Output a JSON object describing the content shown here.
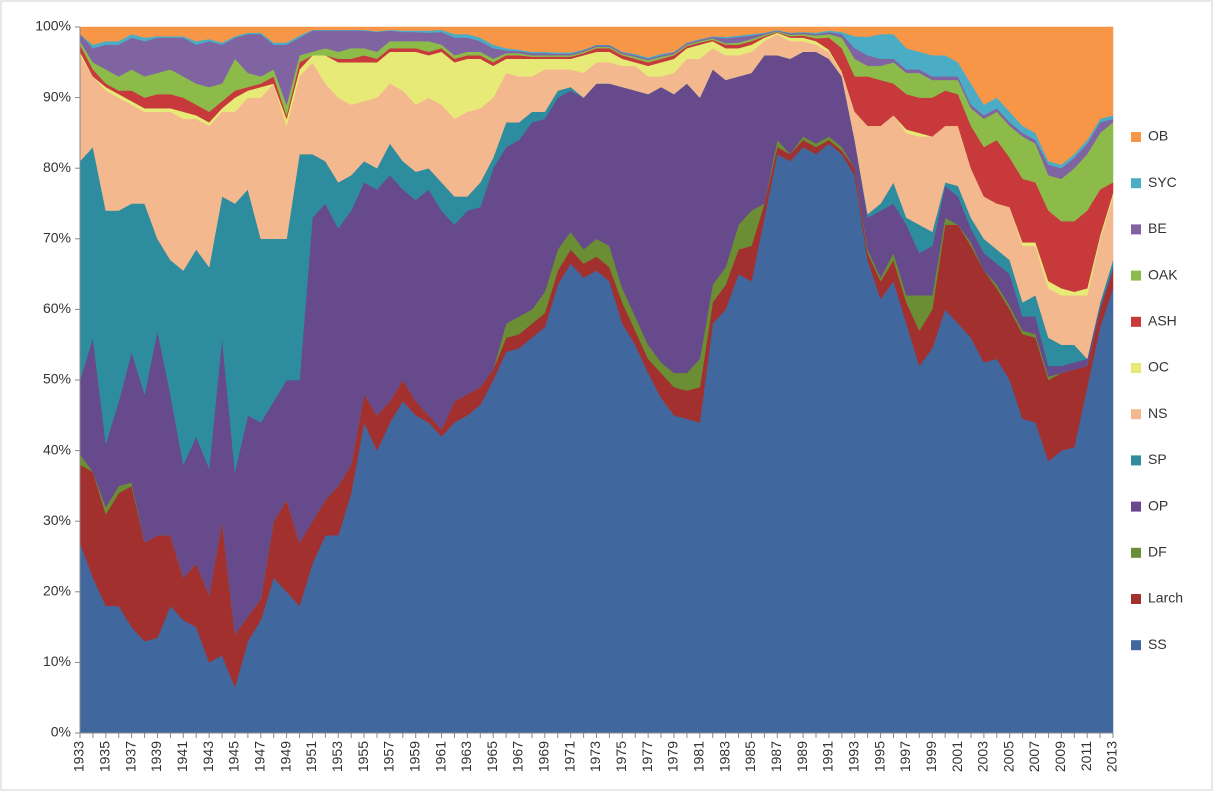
{
  "chart_data": {
    "type": "stacked_area_percent",
    "categories": [
      "1933",
      null,
      "1935",
      null,
      "1937",
      null,
      "1939",
      null,
      "1941",
      null,
      "1943",
      null,
      "1945",
      null,
      "1947",
      null,
      "1949",
      null,
      "1951",
      null,
      "1953",
      null,
      "1955",
      null,
      "1957",
      null,
      "1959",
      null,
      "1961",
      null,
      "1963",
      null,
      "1965",
      null,
      "1967",
      null,
      "1969",
      null,
      "1971",
      null,
      "1973",
      null,
      "1975",
      null,
      "1977",
      null,
      "1979",
      null,
      "1981",
      null,
      "1983",
      null,
      "1985",
      null,
      "1987",
      null,
      "1989",
      null,
      "1991",
      null,
      "1993",
      null,
      "1995",
      null,
      "1997",
      null,
      "1999",
      null,
      "2001",
      null,
      "2003",
      null,
      "2005",
      null,
      "2007",
      null,
      "2009",
      null,
      "2011",
      null,
      "2013"
    ],
    "ylim": [
      0,
      100
    ],
    "yticks": [
      {
        "value": 0,
        "label": "0%"
      },
      {
        "value": 10,
        "label": "10%"
      },
      {
        "value": 20,
        "label": "20%"
      },
      {
        "value": 30,
        "label": "30%"
      },
      {
        "value": 40,
        "label": "40%"
      },
      {
        "value": 50,
        "label": "50%"
      },
      {
        "value": 60,
        "label": "60%"
      },
      {
        "value": 70,
        "label": "70%"
      },
      {
        "value": 80,
        "label": "80%"
      },
      {
        "value": 90,
        "label": "90%"
      },
      {
        "value": 100,
        "label": "100%"
      }
    ],
    "legend": "right",
    "series": [
      {
        "name": "SS",
        "color": "#41689e",
        "values": [
          27,
          22,
          18,
          18,
          15,
          13,
          13.5,
          18,
          16,
          15,
          10,
          11,
          6.5,
          13,
          16,
          22,
          20,
          18,
          24,
          28,
          28,
          34,
          44,
          40,
          44,
          47,
          45,
          44,
          42,
          44,
          45,
          46.5,
          50,
          54,
          54.5,
          56,
          57.5,
          63.5,
          66.5,
          64.5,
          65.5,
          64,
          58,
          55,
          51,
          47.5,
          45,
          44.5,
          44,
          58,
          60,
          65,
          64,
          73,
          82,
          81,
          83,
          82,
          83.5,
          82,
          79,
          67,
          61.5,
          64,
          58,
          52,
          54.5,
          60,
          58,
          56,
          52.5,
          53,
          50,
          44.5,
          44,
          38.5,
          40,
          40.5,
          49,
          57.5,
          63
        ]
      },
      {
        "name": "Larch",
        "color": "#a2302e",
        "values": [
          11,
          15,
          13,
          16,
          20,
          14,
          14.5,
          10,
          6,
          9,
          9.5,
          19,
          7.5,
          3.5,
          3,
          8,
          13,
          9,
          6,
          5,
          7,
          4,
          4,
          5,
          3,
          3,
          2,
          1,
          1,
          3,
          3,
          2.5,
          1.5,
          2,
          2,
          2,
          2,
          2,
          2,
          2,
          2,
          2,
          3,
          2,
          2,
          3.5,
          4,
          4,
          5,
          3,
          3.5,
          3.5,
          5,
          2,
          1,
          1,
          1,
          1,
          0.5,
          0.5,
          1,
          1,
          2.5,
          3,
          3,
          5,
          5.5,
          12,
          14,
          13,
          13,
          10,
          10,
          12,
          12,
          11.5,
          11,
          11,
          3,
          2.5,
          2.5
        ]
      },
      {
        "name": "DF",
        "color": "#6b8e34",
        "values": [
          1.5,
          0,
          1,
          1,
          0.5,
          0,
          0,
          0,
          0,
          0,
          0,
          0,
          0,
          0,
          0,
          0,
          0,
          0,
          0,
          0,
          0,
          0,
          0,
          0,
          0,
          0,
          0,
          0,
          0,
          0,
          0,
          0,
          0,
          2,
          2.5,
          2,
          3,
          3,
          2.5,
          2,
          2.5,
          3,
          2,
          2,
          2,
          1.5,
          2,
          2.5,
          4,
          2.5,
          2.5,
          3.5,
          5,
          0,
          1,
          0,
          0.5,
          0.5,
          0.5,
          0.5,
          0,
          0.5,
          0.5,
          1,
          1,
          5,
          2,
          1,
          0,
          0.5,
          0,
          0.5,
          0.5,
          0.5,
          0.5,
          0.5,
          0,
          0,
          0,
          0,
          0
        ]
      },
      {
        "name": "OP",
        "color": "#664a8c",
        "values": [
          10.5,
          19,
          9,
          12,
          18.5,
          21,
          29,
          20,
          16,
          18,
          18,
          26,
          23,
          28.5,
          25,
          17,
          17,
          23,
          43,
          42,
          36.5,
          36,
          30,
          32,
          32,
          27,
          28.5,
          32,
          31,
          25,
          26,
          25.5,
          28.5,
          25,
          25,
          26.5,
          24.5,
          21.5,
          20,
          21.5,
          22,
          23,
          28.5,
          32,
          35.5,
          39,
          39.5,
          41,
          37,
          30.5,
          26.5,
          21,
          19.5,
          21,
          12,
          13.5,
          12,
          13,
          11,
          10,
          4,
          4.5,
          9.5,
          7,
          10,
          6,
          7,
          4.5,
          4,
          2,
          2.5,
          3,
          4.5,
          2,
          2.5,
          1.5,
          1,
          1,
          1,
          0.5,
          0.5
        ]
      },
      {
        "name": "SP",
        "color": "#2e8c9f",
        "values": [
          31,
          27,
          33,
          27,
          21,
          27,
          13,
          19,
          27.5,
          26.5,
          28.5,
          20,
          38,
          32,
          26,
          23,
          20,
          32,
          9,
          6,
          6.5,
          5,
          3,
          3,
          4.5,
          4,
          4,
          3,
          4,
          4,
          2,
          3.5,
          1.5,
          3.5,
          2.5,
          1.5,
          1,
          1,
          0.5,
          0,
          0,
          0,
          0,
          0,
          0,
          0,
          0,
          0,
          0,
          0,
          0,
          0,
          0,
          0,
          0,
          0,
          0,
          0,
          0,
          0,
          0,
          0.5,
          1,
          3,
          1,
          4,
          2,
          0.5,
          1.5,
          1.5,
          2,
          2,
          2,
          2,
          3,
          4,
          3,
          2.5,
          0,
          0.5,
          1
        ]
      },
      {
        "name": "NS",
        "color": "#f4b88f",
        "values": [
          15,
          10,
          17,
          16,
          14,
          13,
          18,
          21,
          21.5,
          18.5,
          20,
          12,
          13,
          13,
          20,
          22,
          16,
          11,
          13,
          11,
          12,
          10,
          8.5,
          10,
          8.5,
          10,
          9.5,
          10,
          11,
          11,
          12,
          10.5,
          8.5,
          7,
          6.5,
          5,
          6,
          3,
          2.5,
          3.5,
          3,
          3,
          3,
          3.5,
          2.5,
          1.5,
          3,
          3.5,
          5.5,
          3,
          3.5,
          3,
          3,
          2,
          3,
          2.5,
          1.5,
          1,
          1,
          0.5,
          4,
          12.5,
          11,
          9.5,
          12,
          12.5,
          13.5,
          8,
          8.5,
          7,
          6,
          6.5,
          7.5,
          8,
          7,
          7,
          7,
          7,
          9,
          9,
          9
        ]
      },
      {
        "name": "OC",
        "color": "#e8ea78",
        "values": [
          0.5,
          0,
          0.5,
          0.5,
          0.5,
          0.5,
          0.5,
          0.5,
          1,
          0.5,
          0.5,
          0.5,
          2,
          1,
          1.5,
          0,
          1,
          1,
          1,
          4,
          5,
          6,
          5.5,
          5,
          4.5,
          5.5,
          7.5,
          6,
          7.5,
          8,
          7.5,
          7,
          4.5,
          2,
          2.5,
          2.5,
          1.5,
          1.5,
          1.5,
          2.5,
          1.5,
          1.5,
          1,
          0.5,
          1.5,
          2,
          2,
          1.5,
          2,
          1,
          1,
          1,
          1,
          0.5,
          0.2,
          0.5,
          0.5,
          0.5,
          0.3,
          0.2,
          0,
          0,
          0,
          0,
          0.5,
          0.5,
          0,
          0,
          0,
          0,
          0,
          0,
          0,
          0.5,
          0.5,
          1,
          1,
          0.5,
          1,
          0.5,
          0.5
        ]
      },
      {
        "name": "ASH",
        "color": "#c7393a",
        "values": [
          1,
          1,
          0.5,
          0.5,
          1.5,
          1.5,
          2,
          2,
          2,
          1.5,
          1.5,
          1,
          1,
          0.5,
          0.5,
          1,
          0.5,
          1,
          0,
          0,
          0.5,
          0.5,
          1,
          0.5,
          0.5,
          0.5,
          0.5,
          0.5,
          0.5,
          0.5,
          0.5,
          0.5,
          0.5,
          0.5,
          0.5,
          0.3,
          0.3,
          0.3,
          0.3,
          0.3,
          0.5,
          0.5,
          0.5,
          0.5,
          0.5,
          0.5,
          0.5,
          0.3,
          0.3,
          0.2,
          0.5,
          0.5,
          0.5,
          0.2,
          0.1,
          0.2,
          0.3,
          0.4,
          1.7,
          3.3,
          5,
          7,
          6.5,
          4.5,
          5,
          5,
          5.5,
          5,
          4.5,
          6,
          7,
          9,
          7,
          9,
          8.5,
          10,
          9.5,
          10,
          11,
          6.5,
          1.5
        ]
      },
      {
        "name": "OAK",
        "color": "#8dbb4a",
        "values": [
          0.5,
          1,
          2,
          2,
          3,
          3,
          3,
          3.5,
          3,
          3,
          3.5,
          2.5,
          4.5,
          2,
          1,
          1,
          1.5,
          1,
          0.5,
          1,
          1,
          1.5,
          1,
          1,
          1,
          1,
          1,
          1.5,
          0.5,
          0.5,
          0.5,
          0.5,
          0.5,
          0.3,
          0.3,
          0.2,
          0.2,
          0.2,
          0.2,
          0.2,
          0.2,
          0.2,
          0.2,
          0.3,
          0.3,
          0.3,
          0.2,
          0.2,
          0.2,
          0.2,
          0.2,
          0.3,
          0.3,
          0.2,
          0.1,
          0.2,
          0.2,
          0.4,
          0.5,
          1.5,
          2.5,
          1.5,
          2,
          3,
          3,
          3.5,
          2.5,
          1.5,
          2,
          2.5,
          4,
          4,
          4.5,
          6,
          5.5,
          5,
          6,
          7.5,
          8,
          8,
          8.5
        ]
      },
      {
        "name": "BE",
        "color": "#8064a2",
        "values": [
          1,
          2,
          3.5,
          4.5,
          4.5,
          5,
          5,
          4.5,
          5.5,
          5.5,
          6.5,
          5.5,
          3,
          5.5,
          6,
          3.5,
          8.5,
          2.5,
          3,
          2.5,
          3,
          2.5,
          2.5,
          2.8,
          1.5,
          1.3,
          1.3,
          1.2,
          1.8,
          2.5,
          2,
          1.5,
          1.5,
          0.4,
          0.3,
          0.3,
          0.3,
          0.2,
          0.2,
          0.2,
          0.2,
          0.2,
          0.2,
          0.2,
          0.2,
          0.2,
          0.2,
          0.2,
          0.2,
          0.2,
          0.7,
          0.8,
          0.5,
          0.2,
          0.1,
          0.2,
          0.2,
          0.2,
          0.3,
          0.5,
          1.5,
          1.5,
          1,
          0.5,
          0.5,
          0.5,
          0.5,
          0.5,
          0.5,
          0.5,
          0.5,
          0.5,
          0.5,
          0.5,
          0.5,
          1.5,
          1.5,
          1.5,
          1.5,
          1.5,
          0.5
        ]
      },
      {
        "name": "SYC",
        "color": "#4bacc6",
        "values": [
          0,
          0.5,
          0.5,
          0.5,
          0.5,
          0.5,
          0.2,
          0.2,
          0.2,
          0.5,
          0.3,
          0.3,
          0.2,
          0.2,
          0.2,
          0.3,
          0.3,
          0.3,
          0.1,
          0.1,
          0.1,
          0.1,
          0.1,
          0.1,
          0.1,
          0.2,
          0.2,
          0.3,
          0.3,
          0.5,
          0.5,
          0.5,
          0.5,
          0.3,
          0.2,
          0.2,
          0.2,
          0.2,
          0.2,
          0.1,
          0.1,
          0.1,
          0.1,
          0.2,
          0.2,
          0.2,
          0.1,
          0.1,
          0.1,
          0.1,
          0.2,
          0.2,
          0.2,
          0.1,
          0.1,
          0.1,
          0.1,
          0.2,
          0.2,
          0.3,
          1.7,
          2.6,
          3.5,
          3.5,
          3,
          2.5,
          3,
          3,
          2,
          3,
          1.5,
          1.5,
          1.5,
          1,
          1,
          0.5,
          0.5,
          0.5,
          0.5,
          0.5,
          0.5
        ]
      },
      {
        "name": "OB",
        "color": "#f79646",
        "values": [
          1,
          2.5,
          2,
          2,
          1,
          1.5,
          1.3,
          1.3,
          1.3,
          2,
          1.7,
          2.2,
          1.3,
          0.8,
          0.8,
          2.2,
          2.2,
          1.2,
          0.4,
          0.4,
          0.4,
          0.4,
          0.4,
          0.6,
          0.4,
          0.5,
          0.5,
          0.5,
          0.4,
          1,
          1,
          1.5,
          2.5,
          3,
          3.2,
          3.5,
          3.5,
          3.6,
          3.6,
          3.2,
          2.5,
          2.5,
          3.5,
          3.8,
          4.3,
          3.8,
          3.5,
          2.2,
          1.7,
          1.3,
          1.4,
          1.2,
          1,
          0.8,
          0.4,
          0.8,
          0.7,
          0.8,
          0.5,
          0.7,
          1.3,
          1.4,
          1,
          1,
          3,
          3.5,
          4,
          4,
          5,
          8,
          11,
          10,
          12,
          14,
          15,
          19,
          19.5,
          18,
          16,
          13,
          12.5
        ]
      }
    ]
  }
}
